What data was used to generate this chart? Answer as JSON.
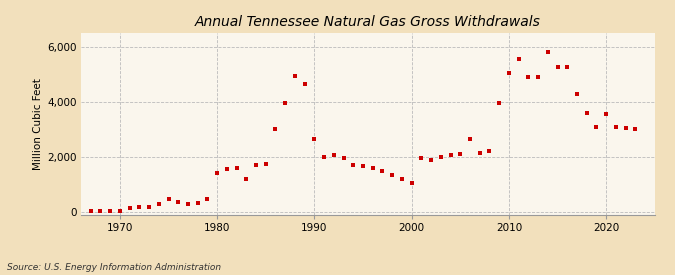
{
  "title": "Annual Tennessee Natural Gas Gross Withdrawals",
  "ylabel": "Million Cubic Feet",
  "source": "Source: U.S. Energy Information Administration",
  "background_color": "#f2e0bc",
  "plot_background_color": "#faf6ed",
  "marker_color": "#cc0000",
  "xlim": [
    1966,
    2025
  ],
  "ylim": [
    -100,
    6500
  ],
  "yticks": [
    0,
    2000,
    4000,
    6000
  ],
  "ytick_labels": [
    "0",
    "2,000",
    "4,000",
    "6,000"
  ],
  "xticks": [
    1970,
    1980,
    1990,
    2000,
    2010,
    2020
  ],
  "years": [
    1967,
    1968,
    1969,
    1970,
    1971,
    1972,
    1973,
    1974,
    1975,
    1976,
    1977,
    1978,
    1979,
    1980,
    1981,
    1982,
    1983,
    1984,
    1985,
    1986,
    1987,
    1988,
    1989,
    1990,
    1991,
    1992,
    1993,
    1994,
    1995,
    1996,
    1997,
    1998,
    1999,
    2000,
    2001,
    2002,
    2003,
    2004,
    2005,
    2006,
    2007,
    2008,
    2009,
    2010,
    2011,
    2012,
    2013,
    2014,
    2015,
    2016,
    2017,
    2018,
    2019,
    2020,
    2021,
    2022,
    2023
  ],
  "values": [
    20,
    20,
    25,
    30,
    120,
    160,
    170,
    290,
    480,
    360,
    290,
    330,
    470,
    1400,
    1550,
    1600,
    1200,
    1700,
    1750,
    3000,
    3950,
    4950,
    4650,
    2660,
    2000,
    2050,
    1950,
    1700,
    1650,
    1600,
    1500,
    1350,
    1200,
    1050,
    1950,
    1900,
    2000,
    2050,
    2100,
    2650,
    2150,
    2200,
    3950,
    5050,
    5550,
    4900,
    4900,
    5800,
    5250,
    5250,
    4300,
    3600,
    3100,
    3550,
    3100,
    3050,
    3000
  ],
  "figwidth": 6.75,
  "figheight": 2.75,
  "dpi": 100
}
